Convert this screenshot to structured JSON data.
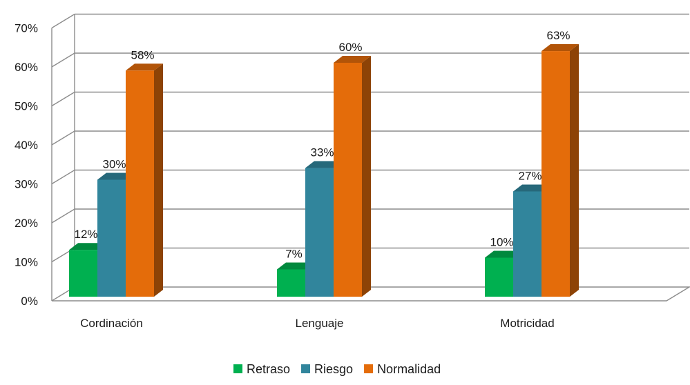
{
  "chart_data": {
    "type": "bar",
    "three_d": true,
    "categories": [
      "Cordinación",
      "Lenguaje",
      "Motricidad"
    ],
    "series": [
      {
        "name": "Retraso",
        "values": [
          12,
          7,
          10
        ],
        "labels": [
          "12%",
          "7%",
          "10%"
        ],
        "color": "#00b050"
      },
      {
        "name": "Riesgo",
        "values": [
          30,
          33,
          27
        ],
        "labels": [
          "30%",
          "33%",
          "27%"
        ],
        "color": "#31859c"
      },
      {
        "name": "Normalidad",
        "values": [
          58,
          60,
          63
        ],
        "labels": [
          "58%",
          "60%",
          "63%"
        ],
        "color": "#e46c0a"
      }
    ],
    "yticks": [
      "0%",
      "10%",
      "20%",
      "30%",
      "40%",
      "50%",
      "60%",
      "70%"
    ],
    "ylim": [
      0,
      70
    ],
    "grid": true,
    "legend_position": "bottom"
  }
}
